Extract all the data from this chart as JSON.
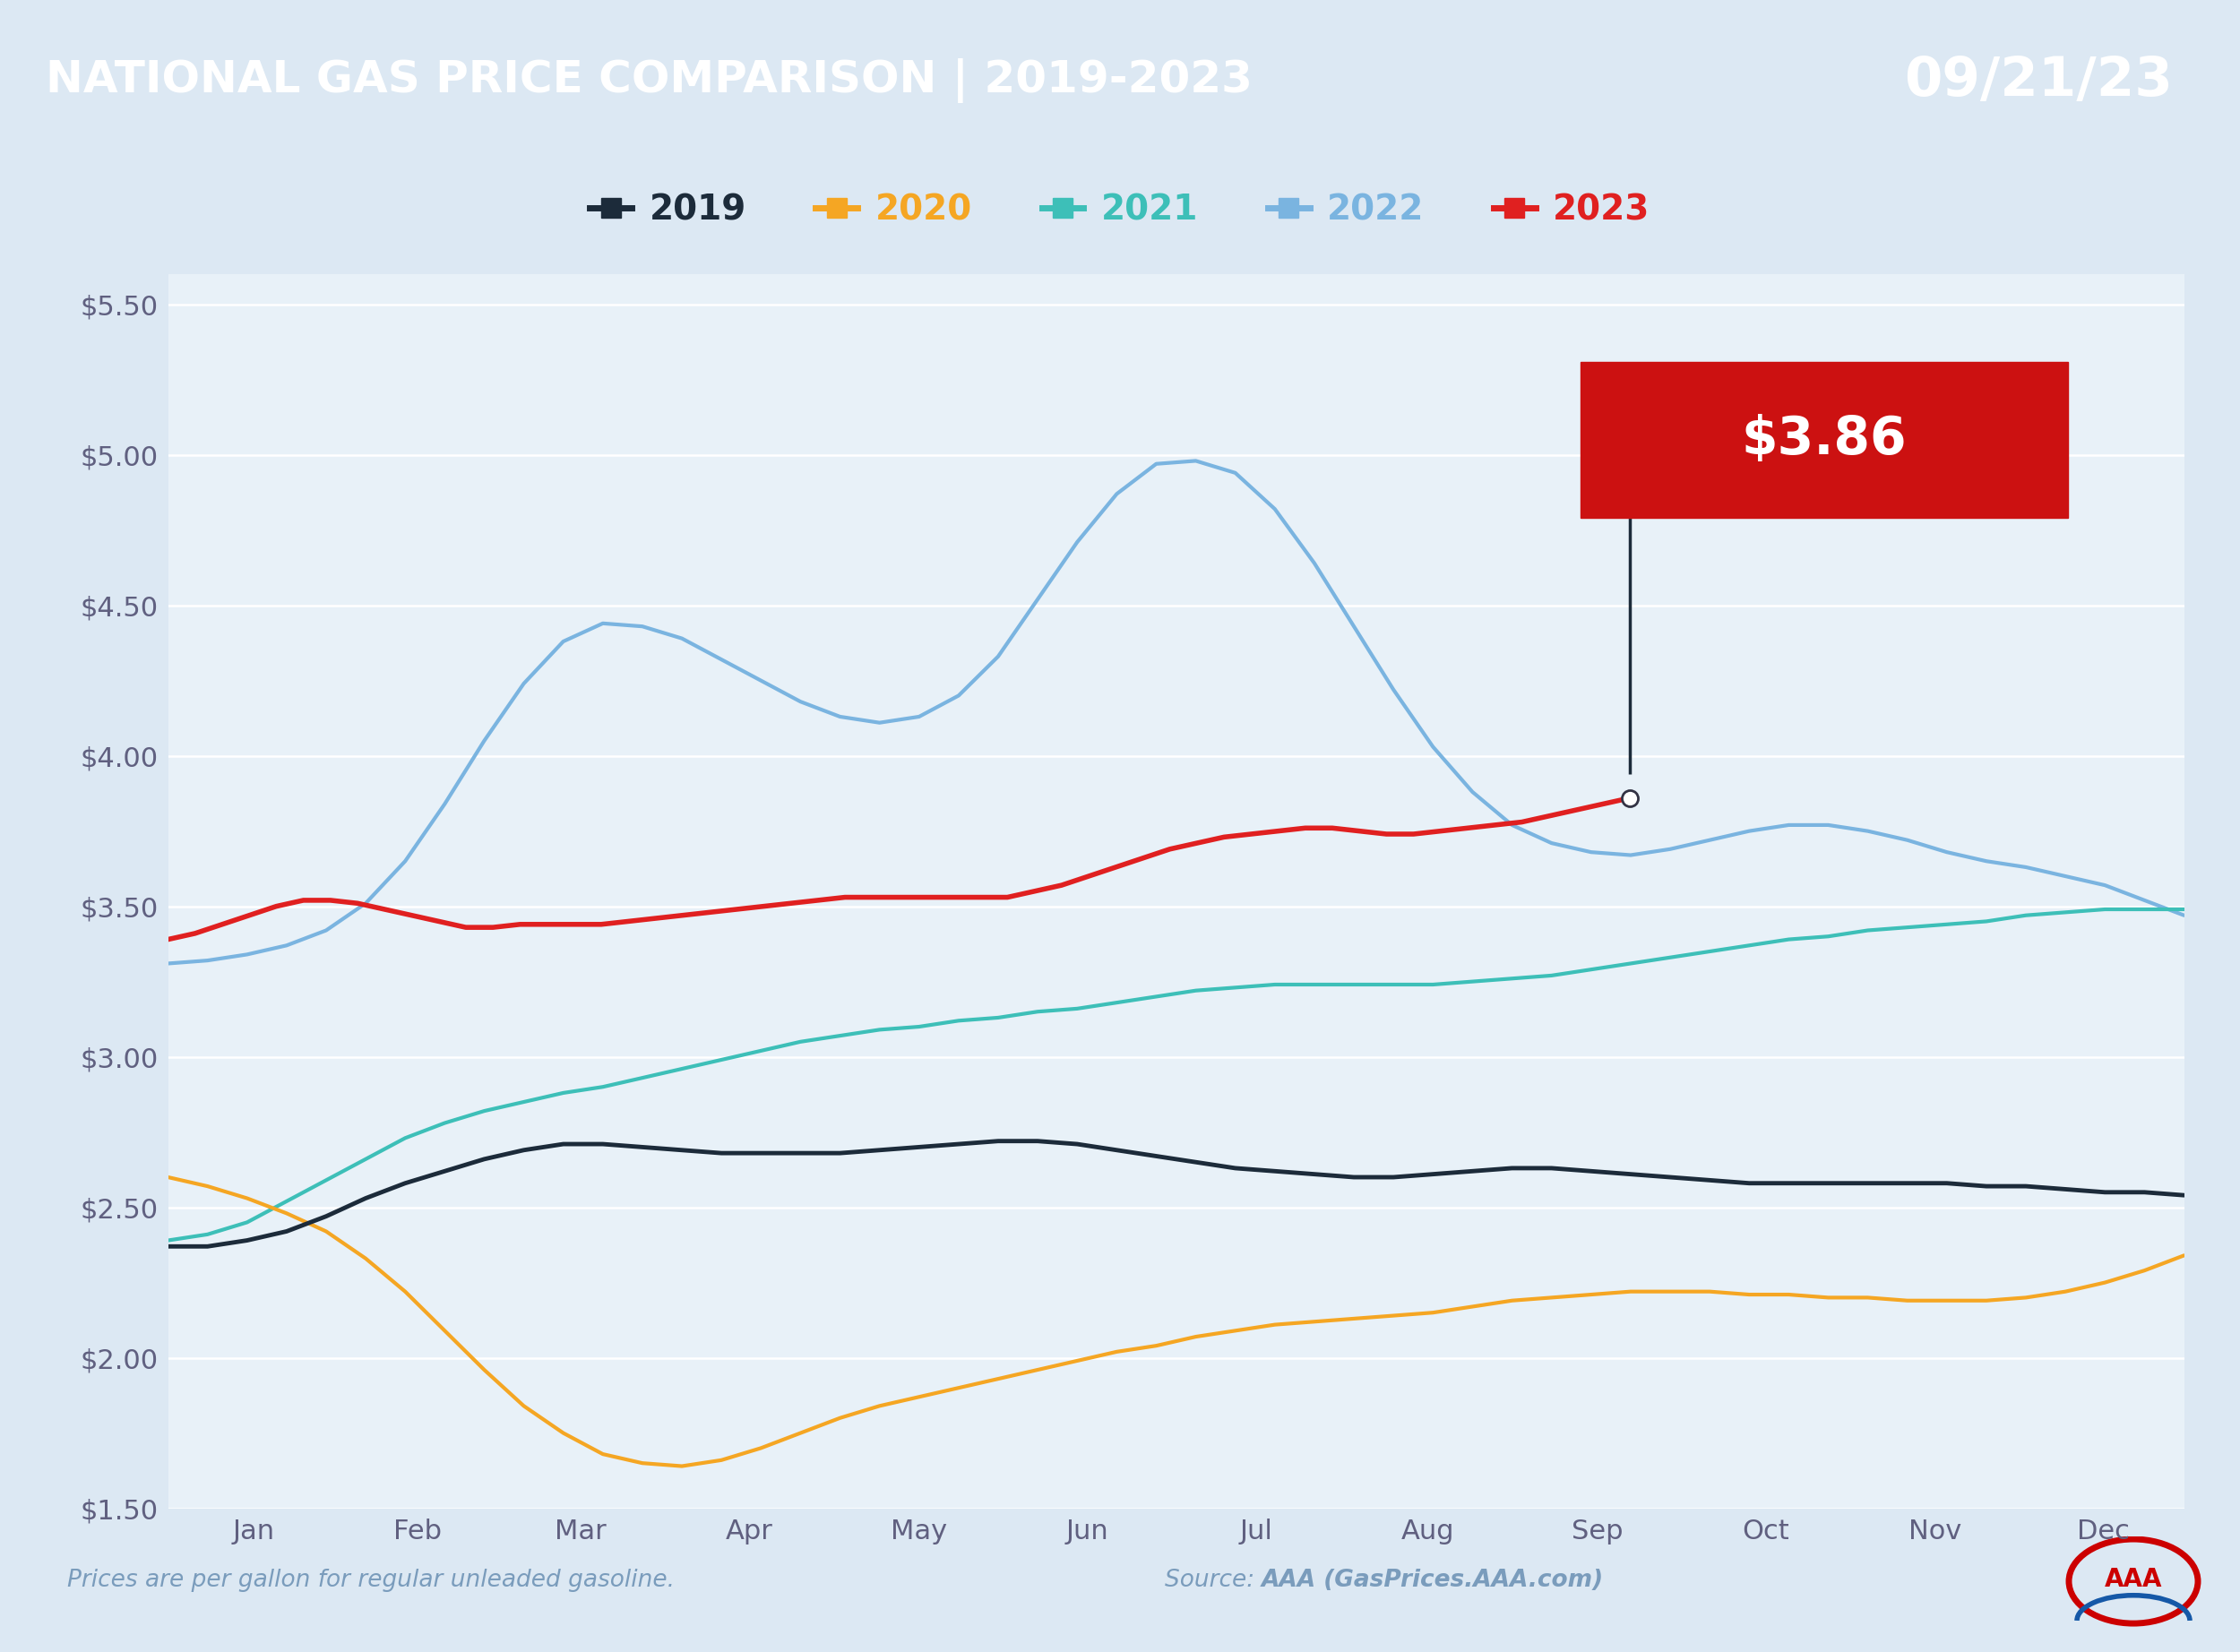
{
  "title_left": "NATIONAL GAS PRICE COMPARISON | 2019-2023",
  "title_right": "09/21/23",
  "title_bg_color": "#1558a7",
  "title_right_bg_color": "#5b9bd5",
  "footer_note": "Prices are per gallon for regular unleaded gasoline.",
  "footer_source": "Source: ",
  "footer_source_bold": "AAA (GasPrices.AAA.com)",
  "bg_color": "#dce8f3",
  "plot_bg_color": "#e8f1f8",
  "ylim": [
    1.5,
    5.6
  ],
  "yticks": [
    1.5,
    2.0,
    2.5,
    3.0,
    3.5,
    4.0,
    4.5,
    5.0,
    5.5
  ],
  "months": [
    "Jan",
    "Feb",
    "Mar",
    "Apr",
    "May",
    "Jun",
    "Jul",
    "Aug",
    "Sep",
    "Oct",
    "Nov",
    "Dec"
  ],
  "annotation_value": "$3.86",
  "series": {
    "2019": {
      "color": "#1c2b3a",
      "linewidth": 3.5,
      "values": [
        2.37,
        2.37,
        2.39,
        2.42,
        2.47,
        2.53,
        2.58,
        2.62,
        2.66,
        2.69,
        2.71,
        2.71,
        2.7,
        2.69,
        2.68,
        2.68,
        2.68,
        2.68,
        2.69,
        2.7,
        2.71,
        2.72,
        2.72,
        2.71,
        2.69,
        2.67,
        2.65,
        2.63,
        2.62,
        2.61,
        2.6,
        2.6,
        2.61,
        2.62,
        2.63,
        2.63,
        2.62,
        2.61,
        2.6,
        2.59,
        2.58,
        2.58,
        2.58,
        2.58,
        2.58,
        2.58,
        2.57,
        2.57,
        2.56,
        2.55,
        2.55,
        2.54
      ]
    },
    "2020": {
      "color": "#f5a623",
      "linewidth": 3.0,
      "values": [
        2.6,
        2.57,
        2.53,
        2.48,
        2.42,
        2.33,
        2.22,
        2.09,
        1.96,
        1.84,
        1.75,
        1.68,
        1.65,
        1.64,
        1.66,
        1.7,
        1.75,
        1.8,
        1.84,
        1.87,
        1.9,
        1.93,
        1.96,
        1.99,
        2.02,
        2.04,
        2.07,
        2.09,
        2.11,
        2.12,
        2.13,
        2.14,
        2.15,
        2.17,
        2.19,
        2.2,
        2.21,
        2.22,
        2.22,
        2.22,
        2.21,
        2.21,
        2.2,
        2.2,
        2.19,
        2.19,
        2.19,
        2.2,
        2.22,
        2.25,
        2.29,
        2.34
      ]
    },
    "2021": {
      "color": "#3dbfb8",
      "linewidth": 3.0,
      "values": [
        2.39,
        2.41,
        2.45,
        2.52,
        2.59,
        2.66,
        2.73,
        2.78,
        2.82,
        2.85,
        2.88,
        2.9,
        2.93,
        2.96,
        2.99,
        3.02,
        3.05,
        3.07,
        3.09,
        3.1,
        3.12,
        3.13,
        3.15,
        3.16,
        3.18,
        3.2,
        3.22,
        3.23,
        3.24,
        3.24,
        3.24,
        3.24,
        3.24,
        3.25,
        3.26,
        3.27,
        3.29,
        3.31,
        3.33,
        3.35,
        3.37,
        3.39,
        3.4,
        3.42,
        3.43,
        3.44,
        3.45,
        3.47,
        3.48,
        3.49,
        3.49,
        3.49
      ]
    },
    "2022": {
      "color": "#7ab4e0",
      "linewidth": 3.0,
      "values": [
        3.31,
        3.32,
        3.34,
        3.37,
        3.42,
        3.51,
        3.65,
        3.84,
        4.05,
        4.24,
        4.38,
        4.44,
        4.43,
        4.39,
        4.32,
        4.25,
        4.18,
        4.13,
        4.11,
        4.13,
        4.2,
        4.33,
        4.52,
        4.71,
        4.87,
        4.97,
        4.98,
        4.94,
        4.82,
        4.64,
        4.43,
        4.22,
        4.03,
        3.88,
        3.77,
        3.71,
        3.68,
        3.67,
        3.69,
        3.72,
        3.75,
        3.77,
        3.77,
        3.75,
        3.72,
        3.68,
        3.65,
        3.63,
        3.6,
        3.57,
        3.52,
        3.47
      ]
    },
    "2023": {
      "color": "#e02020",
      "linewidth": 4.0,
      "values": [
        3.39,
        3.41,
        3.44,
        3.47,
        3.5,
        3.52,
        3.52,
        3.51,
        3.49,
        3.47,
        3.45,
        3.43,
        3.43,
        3.44,
        3.44,
        3.44,
        3.44,
        3.45,
        3.46,
        3.47,
        3.48,
        3.49,
        3.5,
        3.51,
        3.52,
        3.53,
        3.53,
        3.53,
        3.53,
        3.53,
        3.53,
        3.53,
        3.55,
        3.57,
        3.6,
        3.63,
        3.66,
        3.69,
        3.71,
        3.73,
        3.74,
        3.75,
        3.76,
        3.76,
        3.75,
        3.74,
        3.74,
        3.75,
        3.76,
        3.77,
        3.78,
        3.8,
        3.82,
        3.84,
        3.86
      ]
    }
  }
}
